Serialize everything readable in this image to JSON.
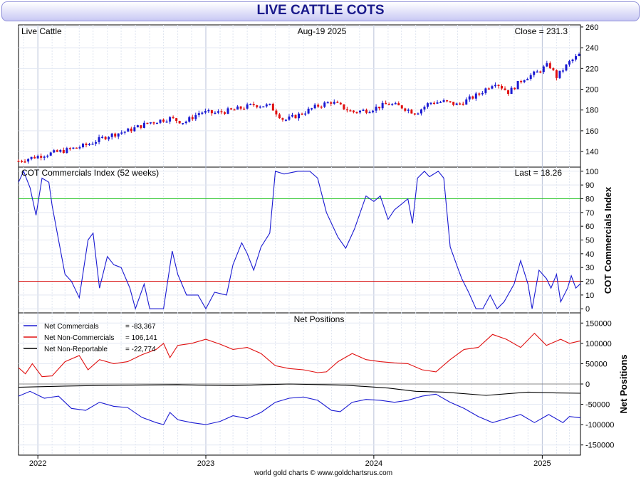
{
  "title": "LIVE CATTLE COTS",
  "footer": "world gold charts © www.goldchartsrus.com",
  "x_axis": {
    "range": [
      "2021-11-20",
      "2025-03-25"
    ],
    "tick_labels": [
      "2022",
      "2023",
      "2024",
      "2025"
    ],
    "tick_dates": [
      "2022-01-01",
      "2023-01-01",
      "2024-01-01",
      "2025-01-01"
    ]
  },
  "colors": {
    "up_candle": "#1a1ad2",
    "down_candle": "#e01010",
    "cot_line": "#1a1ad2",
    "upper_band": "#26c426",
    "lower_band": "#d81010",
    "commercials": "#1a1ad2",
    "non_commercials": "#e01010",
    "non_reportable": "#000000",
    "banner_text": "#1a1a8c"
  },
  "panels": {
    "price": {
      "name": "Live Cattle",
      "date_label": "Aug-19  2025",
      "last_label": "Close = 231.3",
      "ylim": [
        125,
        262
      ],
      "yticks": [
        "260",
        "240",
        "220",
        "200",
        "180",
        "160",
        "140"
      ]
    },
    "cot": {
      "name": "COT Commercials Index (52 weeks)",
      "last_label": "Last = 18.26",
      "axis_title": "COT Commercials Index",
      "ylim": [
        -3,
        103
      ],
      "yticks": [
        "100",
        "90",
        "80",
        "70",
        "60",
        "50",
        "40",
        "30",
        "20",
        "10",
        "0"
      ],
      "bands": [
        80,
        20
      ]
    },
    "net": {
      "name": "Net Positions",
      "axis_title": "Net Positions",
      "ylim": [
        -175000,
        175000
      ],
      "yticks": [
        "150000",
        "100000",
        "50000",
        "0",
        "-50000",
        "-100000",
        "-150000"
      ],
      "legend": [
        {
          "label": "Net Commercials",
          "value": "= -83,367",
          "color_key": "commercials"
        },
        {
          "label": "Net Non-Commercials",
          "value": "= 106,141",
          "color_key": "non_commercials"
        },
        {
          "label": "Net Non-Reportable",
          "value": "= -22,774",
          "color_key": "non_reportable"
        }
      ]
    }
  },
  "chart_data": {
    "type": "line",
    "x_unit": "date",
    "price_candles": {
      "ohlc_anchor_points": [
        [
          "2021-11-20",
          131
        ],
        [
          "2022-01-15",
          137
        ],
        [
          "2022-03-01",
          141
        ],
        [
          "2022-04-15",
          146
        ],
        [
          "2022-06-01",
          155
        ],
        [
          "2022-07-15",
          160
        ],
        [
          "2022-09-01",
          168
        ],
        [
          "2022-10-15",
          172
        ],
        [
          "2022-11-15",
          168
        ],
        [
          "2022-12-20",
          178
        ],
        [
          "2023-01-20",
          177
        ],
        [
          "2023-03-01",
          180
        ],
        [
          "2023-04-15",
          185
        ],
        [
          "2023-05-20",
          184
        ],
        [
          "2023-06-20",
          170
        ],
        [
          "2023-07-20",
          175
        ],
        [
          "2023-09-01",
          184
        ],
        [
          "2023-10-01",
          188
        ],
        [
          "2023-11-15",
          178
        ],
        [
          "2023-12-20",
          180
        ],
        [
          "2024-02-01",
          186
        ],
        [
          "2024-03-01",
          183
        ],
        [
          "2024-04-01",
          177
        ],
        [
          "2024-05-01",
          187
        ],
        [
          "2024-06-01",
          188
        ],
        [
          "2024-07-01",
          185
        ],
        [
          "2024-08-15",
          195
        ],
        [
          "2024-09-20",
          207
        ],
        [
          "2024-10-20",
          197
        ],
        [
          "2024-11-20",
          210
        ],
        [
          "2024-12-20",
          216
        ],
        [
          "2025-01-15",
          224
        ],
        [
          "2025-02-01",
          212
        ],
        [
          "2025-03-01",
          226
        ],
        [
          "2025-03-25",
          234
        ]
      ]
    },
    "series": [
      {
        "name": "COT Commercials Index (52 weeks)",
        "values": [
          [
            "2021-11-20",
            92
          ],
          [
            "2021-12-01",
            100
          ],
          [
            "2021-12-15",
            88
          ],
          [
            "2021-12-28",
            68
          ],
          [
            "2022-01-10",
            95
          ],
          [
            "2022-01-25",
            92
          ],
          [
            "2022-02-01",
            75
          ],
          [
            "2022-02-15",
            50
          ],
          [
            "2022-03-01",
            25
          ],
          [
            "2022-03-15",
            20
          ],
          [
            "2022-04-01",
            8
          ],
          [
            "2022-04-20",
            50
          ],
          [
            "2022-05-01",
            55
          ],
          [
            "2022-05-15",
            15
          ],
          [
            "2022-06-01",
            38
          ],
          [
            "2022-06-15",
            32
          ],
          [
            "2022-07-01",
            30
          ],
          [
            "2022-07-20",
            15
          ],
          [
            "2022-08-01",
            0
          ],
          [
            "2022-08-20",
            18
          ],
          [
            "2022-09-01",
            0
          ],
          [
            "2022-10-01",
            0
          ],
          [
            "2022-10-20",
            42
          ],
          [
            "2022-11-01",
            25
          ],
          [
            "2022-11-20",
            10
          ],
          [
            "2022-12-15",
            10
          ],
          [
            "2023-01-01",
            0
          ],
          [
            "2023-01-20",
            12
          ],
          [
            "2023-02-15",
            10
          ],
          [
            "2023-03-01",
            32
          ],
          [
            "2023-03-20",
            48
          ],
          [
            "2023-04-01",
            40
          ],
          [
            "2023-04-15",
            28
          ],
          [
            "2023-05-01",
            45
          ],
          [
            "2023-05-20",
            55
          ],
          [
            "2023-06-01",
            100
          ],
          [
            "2023-06-20",
            98
          ],
          [
            "2023-07-20",
            100
          ],
          [
            "2023-08-15",
            100
          ],
          [
            "2023-09-01",
            95
          ],
          [
            "2023-09-20",
            70
          ],
          [
            "2023-10-15",
            52
          ],
          [
            "2023-11-01",
            44
          ],
          [
            "2023-11-20",
            58
          ],
          [
            "2023-12-15",
            82
          ],
          [
            "2024-01-01",
            78
          ],
          [
            "2024-01-15",
            82
          ],
          [
            "2024-02-01",
            65
          ],
          [
            "2024-02-15",
            72
          ],
          [
            "2024-03-01",
            76
          ],
          [
            "2024-03-15",
            80
          ],
          [
            "2024-03-25",
            62
          ],
          [
            "2024-04-05",
            95
          ],
          [
            "2024-04-20",
            100
          ],
          [
            "2024-05-01",
            96
          ],
          [
            "2024-05-20",
            100
          ],
          [
            "2024-06-01",
            95
          ],
          [
            "2024-06-15",
            45
          ],
          [
            "2024-07-01",
            30
          ],
          [
            "2024-07-10",
            22
          ],
          [
            "2024-07-25",
            12
          ],
          [
            "2024-08-10",
            0
          ],
          [
            "2024-08-25",
            0
          ],
          [
            "2024-09-10",
            10
          ],
          [
            "2024-09-25",
            0
          ],
          [
            "2024-10-10",
            5
          ],
          [
            "2024-11-01",
            18
          ],
          [
            "2024-11-15",
            35
          ],
          [
            "2024-12-01",
            18
          ],
          [
            "2024-12-10",
            0
          ],
          [
            "2024-12-25",
            28
          ],
          [
            "2025-01-10",
            22
          ],
          [
            "2025-01-20",
            15
          ],
          [
            "2025-02-01",
            25
          ],
          [
            "2025-02-10",
            5
          ],
          [
            "2025-02-25",
            15
          ],
          [
            "2025-03-05",
            24
          ],
          [
            "2025-03-15",
            15
          ],
          [
            "2025-03-25",
            18.26
          ]
        ]
      },
      {
        "name": "Net Commercials",
        "values": [
          [
            "2021-11-20",
            -30000
          ],
          [
            "2021-12-15",
            -18000
          ],
          [
            "2022-01-15",
            -35000
          ],
          [
            "2022-02-15",
            -30000
          ],
          [
            "2022-03-15",
            -60000
          ],
          [
            "2022-04-15",
            -65000
          ],
          [
            "2022-05-15",
            -45000
          ],
          [
            "2022-06-15",
            -55000
          ],
          [
            "2022-07-15",
            -58000
          ],
          [
            "2022-08-15",
            -82000
          ],
          [
            "2022-09-15",
            -95000
          ],
          [
            "2022-10-01",
            -100000
          ],
          [
            "2022-10-15",
            -70000
          ],
          [
            "2022-11-01",
            -88000
          ],
          [
            "2022-12-01",
            -95000
          ],
          [
            "2023-01-01",
            -100000
          ],
          [
            "2023-02-01",
            -92000
          ],
          [
            "2023-03-01",
            -78000
          ],
          [
            "2023-04-01",
            -85000
          ],
          [
            "2023-05-01",
            -70000
          ],
          [
            "2023-06-01",
            -45000
          ],
          [
            "2023-07-01",
            -35000
          ],
          [
            "2023-08-01",
            -32000
          ],
          [
            "2023-09-01",
            -40000
          ],
          [
            "2023-10-01",
            -65000
          ],
          [
            "2023-10-20",
            -68000
          ],
          [
            "2023-11-15",
            -45000
          ],
          [
            "2023-12-15",
            -38000
          ],
          [
            "2024-01-15",
            -40000
          ],
          [
            "2024-02-15",
            -45000
          ],
          [
            "2024-03-15",
            -40000
          ],
          [
            "2024-04-15",
            -30000
          ],
          [
            "2024-05-15",
            -25000
          ],
          [
            "2024-06-15",
            -45000
          ],
          [
            "2024-07-15",
            -60000
          ],
          [
            "2024-08-15",
            -80000
          ],
          [
            "2024-09-15",
            -95000
          ],
          [
            "2024-10-15",
            -85000
          ],
          [
            "2024-11-15",
            -75000
          ],
          [
            "2024-12-15",
            -95000
          ],
          [
            "2025-01-15",
            -75000
          ],
          [
            "2025-02-15",
            -95000
          ],
          [
            "2025-03-01",
            -80000
          ],
          [
            "2025-03-25",
            -83367
          ]
        ]
      },
      {
        "name": "Net Non-Commercials",
        "values": [
          [
            "2021-11-20",
            40000
          ],
          [
            "2021-12-05",
            25000
          ],
          [
            "2021-12-20",
            50000
          ],
          [
            "2022-01-10",
            18000
          ],
          [
            "2022-02-01",
            20000
          ],
          [
            "2022-03-01",
            55000
          ],
          [
            "2022-04-01",
            70000
          ],
          [
            "2022-04-20",
            35000
          ],
          [
            "2022-05-15",
            60000
          ],
          [
            "2022-06-15",
            50000
          ],
          [
            "2022-07-15",
            55000
          ],
          [
            "2022-08-15",
            72000
          ],
          [
            "2022-09-15",
            85000
          ],
          [
            "2022-10-01",
            100000
          ],
          [
            "2022-10-15",
            65000
          ],
          [
            "2022-11-01",
            95000
          ],
          [
            "2022-12-01",
            100000
          ],
          [
            "2023-01-01",
            110000
          ],
          [
            "2023-02-01",
            98000
          ],
          [
            "2023-03-01",
            85000
          ],
          [
            "2023-04-01",
            90000
          ],
          [
            "2023-05-01",
            75000
          ],
          [
            "2023-06-01",
            45000
          ],
          [
            "2023-07-01",
            38000
          ],
          [
            "2023-08-01",
            35000
          ],
          [
            "2023-09-01",
            28000
          ],
          [
            "2023-09-20",
            30000
          ],
          [
            "2023-10-15",
            55000
          ],
          [
            "2023-11-15",
            75000
          ],
          [
            "2023-12-15",
            60000
          ],
          [
            "2024-01-15",
            55000
          ],
          [
            "2024-02-15",
            52000
          ],
          [
            "2024-03-15",
            50000
          ],
          [
            "2024-04-15",
            35000
          ],
          [
            "2024-05-15",
            30000
          ],
          [
            "2024-06-15",
            60000
          ],
          [
            "2024-07-15",
            85000
          ],
          [
            "2024-08-15",
            90000
          ],
          [
            "2024-09-15",
            122000
          ],
          [
            "2024-10-15",
            110000
          ],
          [
            "2024-11-15",
            90000
          ],
          [
            "2024-12-15",
            125000
          ],
          [
            "2025-01-10",
            95000
          ],
          [
            "2025-02-10",
            110000
          ],
          [
            "2025-03-01",
            100000
          ],
          [
            "2025-03-25",
            106141
          ]
        ]
      },
      {
        "name": "Net Non-Reportable",
        "values": [
          [
            "2021-11-20",
            -8000
          ],
          [
            "2022-03-01",
            -5000
          ],
          [
            "2022-07-01",
            -3000
          ],
          [
            "2022-11-01",
            -2000
          ],
          [
            "2023-03-01",
            -4000
          ],
          [
            "2023-07-01",
            0
          ],
          [
            "2023-11-01",
            -3000
          ],
          [
            "2024-02-01",
            -10000
          ],
          [
            "2024-04-01",
            -18000
          ],
          [
            "2024-06-01",
            -20000
          ],
          [
            "2024-09-01",
            -28000
          ],
          [
            "2024-12-01",
            -20000
          ],
          [
            "2025-02-01",
            -22000
          ],
          [
            "2025-03-25",
            -22774
          ]
        ]
      }
    ]
  }
}
